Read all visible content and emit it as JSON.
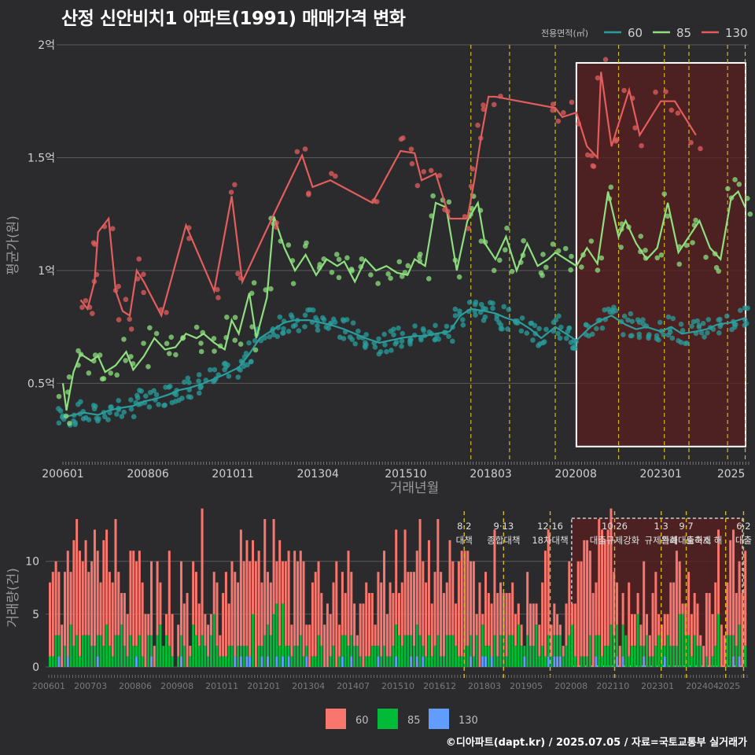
{
  "title": "산정 신안비치1 아파트(1991) 매매가격 변화",
  "footer": "©디아파트(dapt.kr) / 2025.07.05 / 자료=국토교통부 실거래가",
  "colors": {
    "background": "#2b2b2d",
    "s60": "#2a9d9c",
    "s85": "#8ee07f",
    "s130": "#e35d5d",
    "bar60": "#f8766d",
    "bar85": "#00ba38",
    "bar130": "#619cff",
    "policy": "#d4b820",
    "grid": "#5a5a5a",
    "highlight": "#5a1e1e"
  },
  "chart_data": [
    {
      "type": "line",
      "title": "산정 신안비치1 아파트(1991) 매매가격 변화",
      "xlabel": "거래년월",
      "ylabel": "평균가(원)",
      "x_ticks": [
        "200601",
        "200806",
        "201011",
        "201304",
        "201510",
        "201803",
        "202008",
        "202301",
        "2025"
      ],
      "y_ticks": [
        "0.5억",
        "1억",
        "1.5억",
        "2억"
      ],
      "y_tick_values": [
        0.5,
        1.0,
        1.5,
        2.0
      ],
      "ylim": [
        0.16,
        2.0
      ],
      "x_unit_note": "x values are fractional years",
      "legend_title": "전용면적(㎡)",
      "legend_position": "top-right",
      "series": [
        {
          "name": "60",
          "points": [
            [
              2006.0,
              0.35
            ],
            [
              2006.3,
              0.36
            ],
            [
              2006.6,
              0.37
            ],
            [
              2007.0,
              0.36
            ],
            [
              2007.3,
              0.38
            ],
            [
              2007.6,
              0.39
            ],
            [
              2008.0,
              0.4
            ],
            [
              2008.3,
              0.42
            ],
            [
              2008.6,
              0.43
            ],
            [
              2009.0,
              0.45
            ],
            [
              2009.3,
              0.47
            ],
            [
              2009.6,
              0.48
            ],
            [
              2010.0,
              0.5
            ],
            [
              2010.3,
              0.52
            ],
            [
              2010.6,
              0.54
            ],
            [
              2011.0,
              0.57
            ],
            [
              2011.3,
              0.63
            ],
            [
              2011.6,
              0.7
            ],
            [
              2012.0,
              0.74
            ],
            [
              2012.3,
              0.77
            ],
            [
              2012.6,
              0.78
            ],
            [
              2013.0,
              0.78
            ],
            [
              2013.3,
              0.77
            ],
            [
              2013.6,
              0.76
            ],
            [
              2014.0,
              0.74
            ],
            [
              2014.3,
              0.72
            ],
            [
              2014.6,
              0.7
            ],
            [
              2015.0,
              0.68
            ],
            [
              2015.3,
              0.69
            ],
            [
              2015.6,
              0.7
            ],
            [
              2016.0,
              0.71
            ],
            [
              2016.3,
              0.71
            ],
            [
              2016.6,
              0.72
            ],
            [
              2017.0,
              0.73
            ],
            [
              2017.3,
              0.8
            ],
            [
              2017.6,
              0.83
            ],
            [
              2018.0,
              0.82
            ],
            [
              2018.3,
              0.81
            ],
            [
              2018.6,
              0.79
            ],
            [
              2019.0,
              0.77
            ],
            [
              2019.3,
              0.74
            ],
            [
              2019.6,
              0.7
            ],
            [
              2020.0,
              0.75
            ],
            [
              2020.3,
              0.72
            ],
            [
              2020.6,
              0.69
            ],
            [
              2021.0,
              0.75
            ],
            [
              2021.3,
              0.78
            ],
            [
              2021.6,
              0.8
            ],
            [
              2022.0,
              0.76
            ],
            [
              2022.3,
              0.74
            ],
            [
              2022.6,
              0.75
            ],
            [
              2023.0,
              0.73
            ],
            [
              2023.3,
              0.75
            ],
            [
              2023.6,
              0.72
            ],
            [
              2024.0,
              0.73
            ],
            [
              2024.3,
              0.74
            ],
            [
              2024.6,
              0.76
            ],
            [
              2025.0,
              0.77
            ],
            [
              2025.4,
              0.79
            ]
          ]
        },
        {
          "name": "85",
          "points": [
            [
              2006.0,
              0.5
            ],
            [
              2006.1,
              0.38
            ],
            [
              2006.3,
              0.55
            ],
            [
              2006.5,
              0.63
            ],
            [
              2006.8,
              0.6
            ],
            [
              2007.0,
              0.62
            ],
            [
              2007.2,
              0.55
            ],
            [
              2007.5,
              0.58
            ],
            [
              2007.8,
              0.64
            ],
            [
              2008.0,
              0.56
            ],
            [
              2008.3,
              0.62
            ],
            [
              2008.6,
              0.7
            ],
            [
              2008.9,
              0.65
            ],
            [
              2009.2,
              0.66
            ],
            [
              2009.5,
              0.72
            ],
            [
              2009.8,
              0.7
            ],
            [
              2010.0,
              0.72
            ],
            [
              2010.3,
              0.68
            ],
            [
              2010.6,
              0.65
            ],
            [
              2010.8,
              0.78
            ],
            [
              2011.0,
              0.72
            ],
            [
              2011.3,
              0.9
            ],
            [
              2011.5,
              0.7
            ],
            [
              2011.8,
              0.88
            ],
            [
              2012.0,
              1.24
            ],
            [
              2012.3,
              1.1
            ],
            [
              2012.6,
              1.0
            ],
            [
              2012.9,
              1.07
            ],
            [
              2013.2,
              0.98
            ],
            [
              2013.5,
              1.05
            ],
            [
              2013.8,
              1.02
            ],
            [
              2014.0,
              1.04
            ],
            [
              2014.3,
              0.95
            ],
            [
              2014.6,
              1.05
            ],
            [
              2014.9,
              1.0
            ],
            [
              2015.2,
              1.02
            ],
            [
              2015.5,
              0.99
            ],
            [
              2015.8,
              0.98
            ],
            [
              2016.0,
              1.05
            ],
            [
              2016.3,
              1.02
            ],
            [
              2016.6,
              1.3
            ],
            [
              2016.9,
              1.28
            ],
            [
              2017.2,
              1.0
            ],
            [
              2017.5,
              1.22
            ],
            [
              2017.8,
              1.3
            ],
            [
              2018.0,
              1.12
            ],
            [
              2018.3,
              1.05
            ],
            [
              2018.6,
              1.15
            ],
            [
              2018.9,
              1.0
            ],
            [
              2019.2,
              1.12
            ],
            [
              2019.5,
              1.02
            ],
            [
              2019.8,
              1.05
            ],
            [
              2020.0,
              1.08
            ],
            [
              2020.3,
              1.05
            ],
            [
              2020.6,
              1.02
            ],
            [
              2020.9,
              1.1
            ],
            [
              2021.2,
              1.03
            ],
            [
              2021.5,
              1.35
            ],
            [
              2021.8,
              1.15
            ],
            [
              2022.0,
              1.22
            ],
            [
              2022.3,
              1.12
            ],
            [
              2022.6,
              1.05
            ],
            [
              2022.9,
              1.1
            ],
            [
              2023.2,
              1.3
            ],
            [
              2023.5,
              1.08
            ],
            [
              2023.8,
              1.15
            ],
            [
              2024.1,
              1.22
            ],
            [
              2024.4,
              1.1
            ],
            [
              2024.7,
              1.05
            ],
            [
              2025.0,
              1.32
            ],
            [
              2025.2,
              1.35
            ],
            [
              2025.4,
              1.28
            ]
          ]
        },
        {
          "name": "130",
          "points": [
            [
              2006.5,
              0.87
            ],
            [
              2006.7,
              0.83
            ],
            [
              2006.9,
              0.95
            ],
            [
              2007.0,
              1.17
            ],
            [
              2007.3,
              1.23
            ],
            [
              2007.5,
              0.91
            ],
            [
              2007.7,
              0.82
            ],
            [
              2007.9,
              0.8
            ],
            [
              2008.1,
              1.0
            ],
            [
              2008.3,
              0.95
            ],
            [
              2008.8,
              0.8
            ],
            [
              2009.5,
              1.2
            ],
            [
              2010.3,
              0.91
            ],
            [
              2010.8,
              1.33
            ],
            [
              2011.1,
              0.95
            ],
            [
              2012.0,
              1.25
            ],
            [
              2012.8,
              1.51
            ],
            [
              2013.1,
              1.37
            ],
            [
              2013.6,
              1.4
            ],
            [
              2014.8,
              1.3
            ],
            [
              2015.6,
              1.53
            ],
            [
              2016.0,
              1.52
            ],
            [
              2016.2,
              1.4
            ],
            [
              2016.6,
              1.43
            ],
            [
              2017.0,
              1.23
            ],
            [
              2017.5,
              1.23
            ],
            [
              2017.7,
              1.4
            ],
            [
              2017.9,
              1.6
            ],
            [
              2018.1,
              1.77
            ],
            [
              2018.3,
              1.77
            ],
            [
              2020.0,
              1.72
            ],
            [
              2020.2,
              1.68
            ],
            [
              2020.6,
              1.7
            ],
            [
              2020.9,
              1.55
            ],
            [
              2021.2,
              1.5
            ],
            [
              2021.3,
              1.88
            ],
            [
              2021.6,
              1.55
            ],
            [
              2022.1,
              1.8
            ],
            [
              2022.4,
              1.6
            ],
            [
              2023.0,
              1.75
            ],
            [
              2023.4,
              1.75
            ],
            [
              2024.0,
              1.6
            ]
          ]
        }
      ],
      "policy_lines_x": [
        2017.6,
        2018.7,
        2020.0,
        2021.8,
        2023.1,
        2023.8,
        2024.9,
        2025.4
      ],
      "highlight_box_x": [
        2020.6,
        2025.5
      ],
      "highlight_box_y": [
        0.22,
        1.92
      ]
    },
    {
      "type": "bar",
      "ylabel": "거래량(건)",
      "ylim": [
        0,
        14
      ],
      "y_ticks": [
        "0",
        "5",
        "10"
      ],
      "y_tick_values": [
        0,
        5,
        10
      ],
      "x_ticks": [
        "200601",
        "200703",
        "200806",
        "200908",
        "201011",
        "201201",
        "201304",
        "201407",
        "201510",
        "201612",
        "201803",
        "201905",
        "202008",
        "202110",
        "202301",
        "202404",
        "2025"
      ],
      "series": [
        {
          "name": "60",
          "pattern": "monthly counts, stacked on top",
          "max": 12
        },
        {
          "name": "85",
          "pattern": "monthly counts, middle layer",
          "max": 6
        },
        {
          "name": "130",
          "pattern": "monthly counts, bottom layer",
          "max": 1
        }
      ],
      "policy_labels": [
        {
          "date": "8·2",
          "text": "대책"
        },
        {
          "date": "9·13",
          "text": "종합대책"
        },
        {
          "date": "12·16",
          "text": "18차대책"
        },
        {
          "date": "10·26",
          "text": "대출규제강화"
        },
        {
          "date": "1·3",
          "text": "규제완화"
        },
        {
          "date": "9·7",
          "text": "특례대출축소"
        },
        {
          "date": "",
          "text": "토허제 해"
        },
        {
          "date": "6·2",
          "text": "대출"
        }
      ]
    }
  ]
}
